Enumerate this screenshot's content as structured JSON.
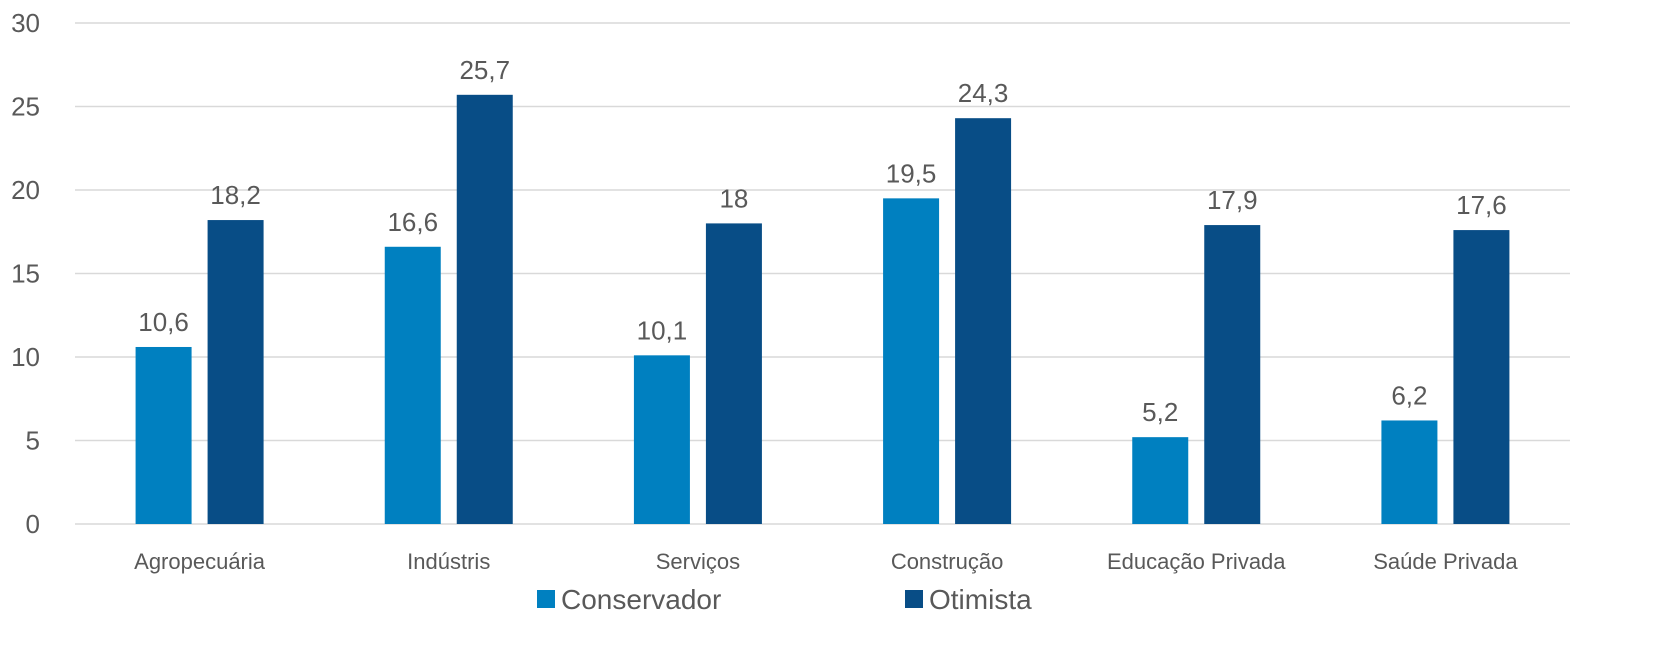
{
  "chart_data": {
    "type": "bar",
    "categories": [
      "Agropecuária",
      "Indústris",
      "Serviços",
      "Construção",
      "Educação Privada",
      "Saúde Privada"
    ],
    "series": [
      {
        "name": "Conservador",
        "color": "#0080c0",
        "values": [
          10.6,
          16.6,
          10.1,
          19.5,
          5.2,
          6.2
        ],
        "labels": [
          "10,6",
          "16,6",
          "10,1",
          "19,5",
          "5,2",
          "6,2"
        ]
      },
      {
        "name": "Otimista",
        "color": "#084d86",
        "values": [
          18.2,
          25.7,
          18,
          24.3,
          17.9,
          17.6
        ],
        "labels": [
          "18,2",
          "25,7",
          "18",
          "24,3",
          "17,9",
          "17,6"
        ]
      }
    ],
    "ylim": [
      0,
      30
    ],
    "yticks": [
      0,
      5,
      10,
      15,
      20,
      25,
      30
    ],
    "grid": true,
    "legend_position": "bottom",
    "title": "",
    "xlabel": "",
    "ylabel": ""
  }
}
